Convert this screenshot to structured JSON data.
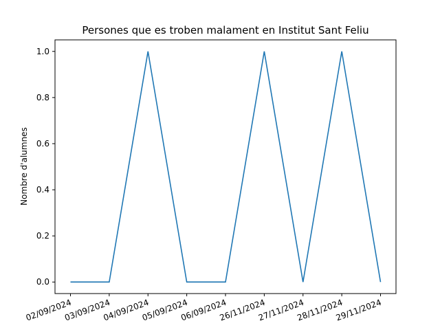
{
  "chart_data": {
    "type": "line",
    "title": "Persones que es troben malament en Institut Sant Feliu",
    "xlabel": "",
    "ylabel": "Nombre d'alumnes",
    "categories": [
      "02/09/2024",
      "03/09/2024",
      "04/09/2024",
      "05/09/2024",
      "06/09/2024",
      "26/11/2024",
      "27/11/2024",
      "28/11/2024",
      "29/11/2024"
    ],
    "series": [
      {
        "values": [
          0,
          0,
          1,
          0,
          0,
          1,
          0,
          1,
          0
        ],
        "color": "#1f77b4"
      }
    ],
    "ylim": [
      -0.05,
      1.05
    ],
    "yticks": [
      0.0,
      0.2,
      0.4,
      0.6,
      0.8,
      1.0
    ],
    "yticklabels": [
      "0.0",
      "0.2",
      "0.4",
      "0.6",
      "0.8",
      "1.0"
    ],
    "grid": false,
    "x_tick_rotation": 20
  }
}
